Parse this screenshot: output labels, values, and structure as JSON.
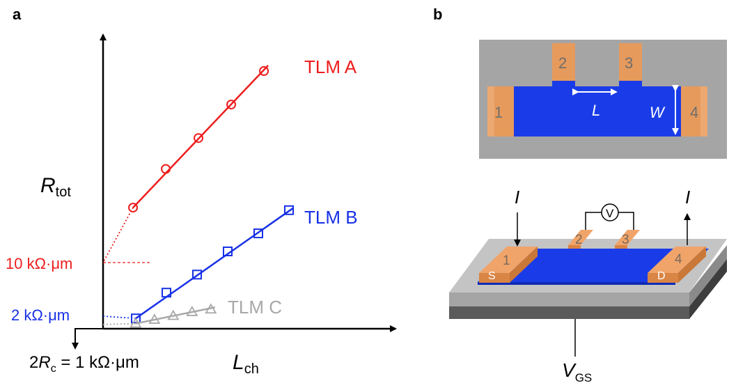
{
  "panel_a": {
    "label": "a",
    "y_axis_label": {
      "main": "R",
      "sub": "tot"
    },
    "x_axis_label": {
      "main": "L",
      "sub": "ch"
    },
    "annotation_10k": "10 kΩ·μm",
    "annotation_2k": "2 kΩ·μm",
    "annotation_1k": {
      "prefix": "2",
      "main": "R",
      "sub": "c",
      "suffix": " = 1 kΩ·μm"
    },
    "colors": {
      "tlm_a": "#ee1c1c",
      "tlm_b": "#1730e6",
      "tlm_c": "#a8a8a8"
    }
  },
  "chart_data": {
    "type": "line",
    "xlabel": "Lch",
    "ylabel": "Rtot",
    "series": [
      {
        "name": "TLM A",
        "marker": "circle",
        "intercept": 10,
        "x": [
          1,
          2,
          3,
          4,
          5
        ],
        "y": [
          0.47,
          0.62,
          0.74,
          0.87,
          1.0
        ]
      },
      {
        "name": "TLM B",
        "marker": "square",
        "intercept": 2,
        "x": [
          0.5,
          1.5,
          2.5,
          3.5,
          4.5,
          5.5
        ],
        "y": [
          0.04,
          0.14,
          0.21,
          0.3,
          0.37,
          0.46
        ]
      },
      {
        "name": "TLM C",
        "marker": "triangle",
        "intercept": 1,
        "x": [
          1,
          2,
          3,
          4,
          5
        ],
        "y": [
          0.02,
          0.035,
          0.05,
          0.065,
          0.075
        ]
      }
    ]
  },
  "panel_b": {
    "label": "b",
    "contact_labels": [
      "1",
      "2",
      "3",
      "4"
    ],
    "length_label": "L",
    "width_label": "W",
    "current_label": "I",
    "voltmeter_label": "V",
    "source_label": "S",
    "drain_label": "D",
    "gate_label": {
      "main": "V",
      "sub": "GS"
    },
    "colors": {
      "channel": "#1a3ce8",
      "contact": "#e69a5c",
      "substrate": "#a5a5a5",
      "substrate_dark": "#5a5a5a"
    }
  }
}
